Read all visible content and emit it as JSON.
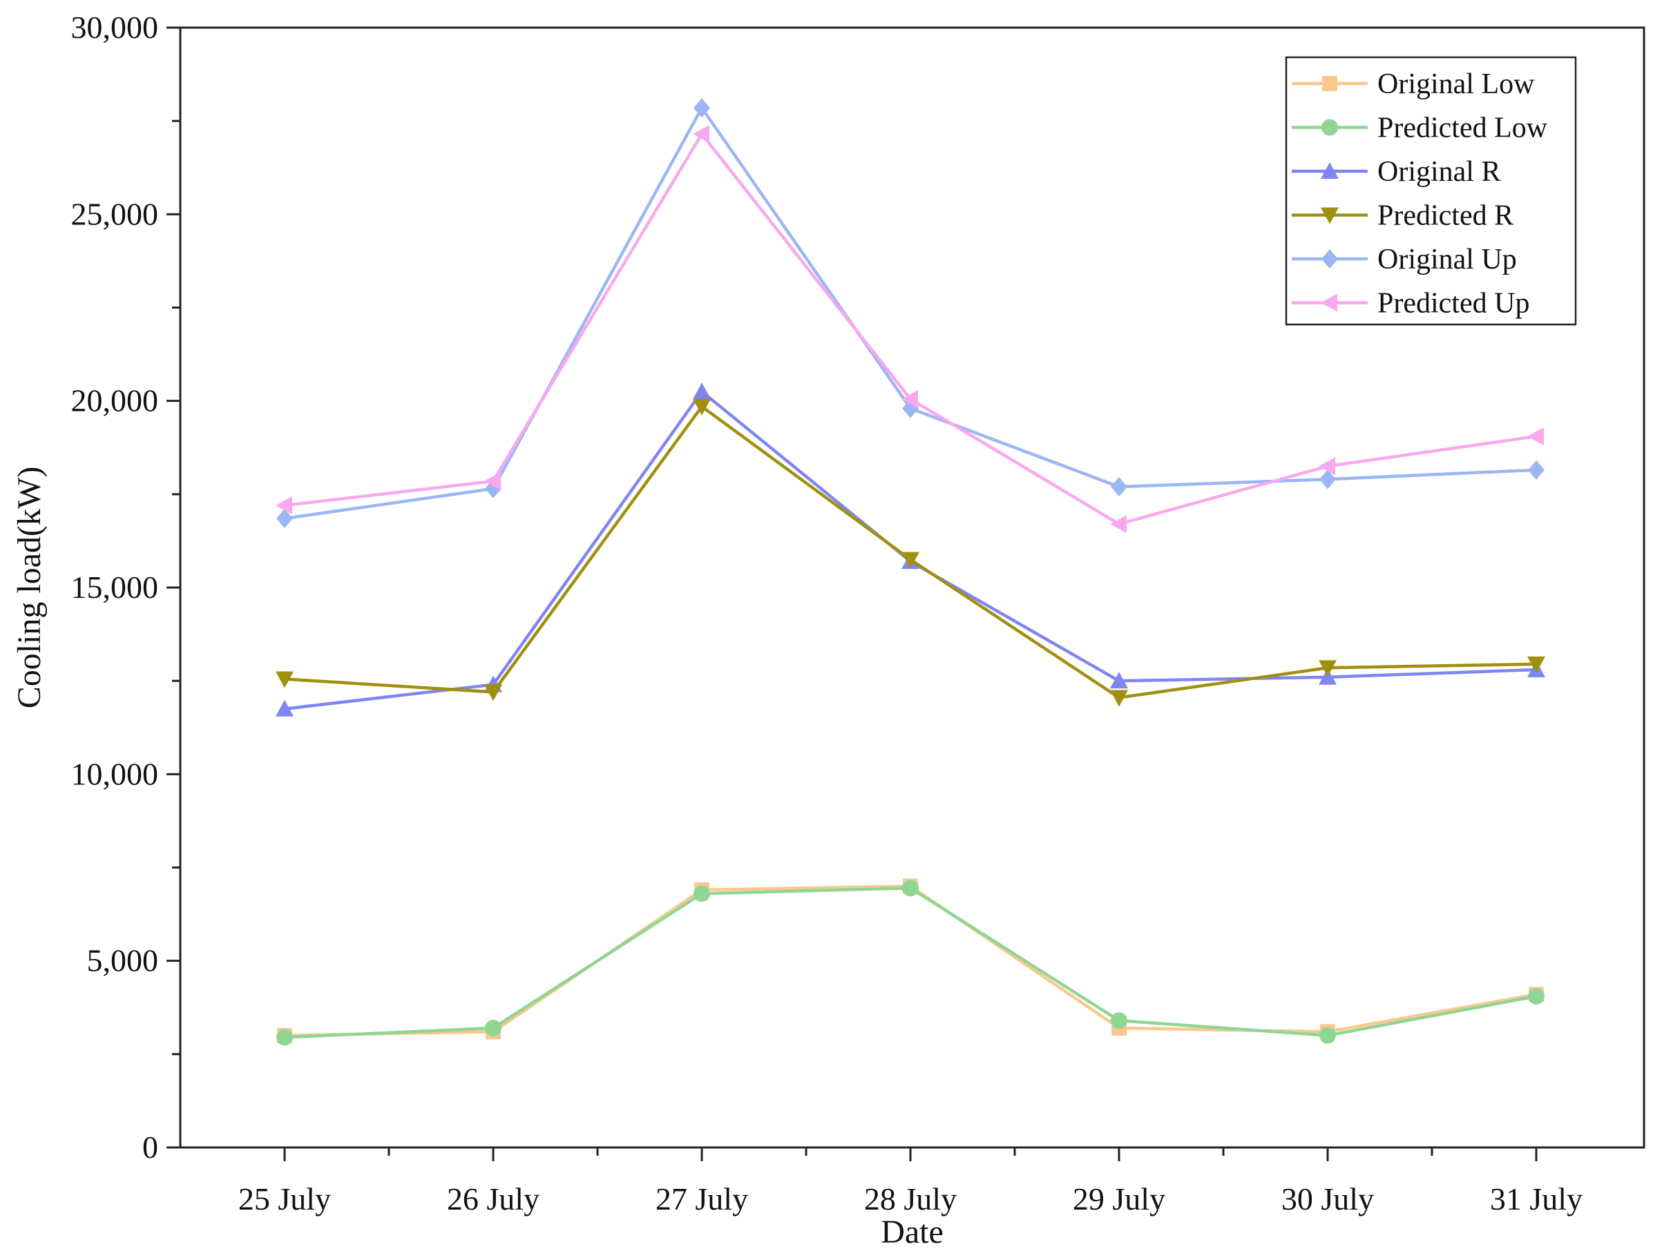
{
  "chart_data": {
    "type": "line",
    "title": "",
    "xlabel": "Date",
    "ylabel": "Cooling load(kW)",
    "categories": [
      "25 July",
      "26 July",
      "27 July",
      "28 July",
      "29 July",
      "30 July",
      "31 July"
    ],
    "ylim": [
      0,
      30000
    ],
    "yticks": [
      0,
      5000,
      10000,
      15000,
      20000,
      25000,
      30000
    ],
    "ytick_labels": [
      "0",
      "5,000",
      "10,000",
      "15,000",
      "20,000",
      "25,000",
      "30,000"
    ],
    "grid": false,
    "legend_position": "top-right",
    "series": [
      {
        "name": "Original Low",
        "color": "#f9c88e",
        "marker": "square",
        "values": [
          3000,
          3100,
          6900,
          7000,
          3200,
          3100,
          4100
        ]
      },
      {
        "name": "Predicted Low",
        "color": "#8fd694",
        "marker": "circle",
        "values": [
          2950,
          3200,
          6800,
          6950,
          3400,
          3000,
          4050
        ]
      },
      {
        "name": "Original R",
        "color": "#7f86f2",
        "marker": "triangle-up",
        "values": [
          11750,
          12400,
          20250,
          15700,
          12500,
          12600,
          12800
        ]
      },
      {
        "name": "Predicted R",
        "color": "#a09010",
        "marker": "triangle-down",
        "values": [
          12550,
          12200,
          19850,
          15750,
          12050,
          12850,
          12950
        ]
      },
      {
        "name": "Original Up",
        "color": "#9ab6f5",
        "marker": "diamond",
        "values": [
          16850,
          17650,
          27850,
          19800,
          17700,
          17900,
          18150
        ]
      },
      {
        "name": "Predicted Up",
        "color": "#f9a8ee",
        "marker": "triangle-left",
        "values": [
          17200,
          17850,
          27150,
          20050,
          16700,
          18250,
          19050
        ]
      }
    ]
  }
}
